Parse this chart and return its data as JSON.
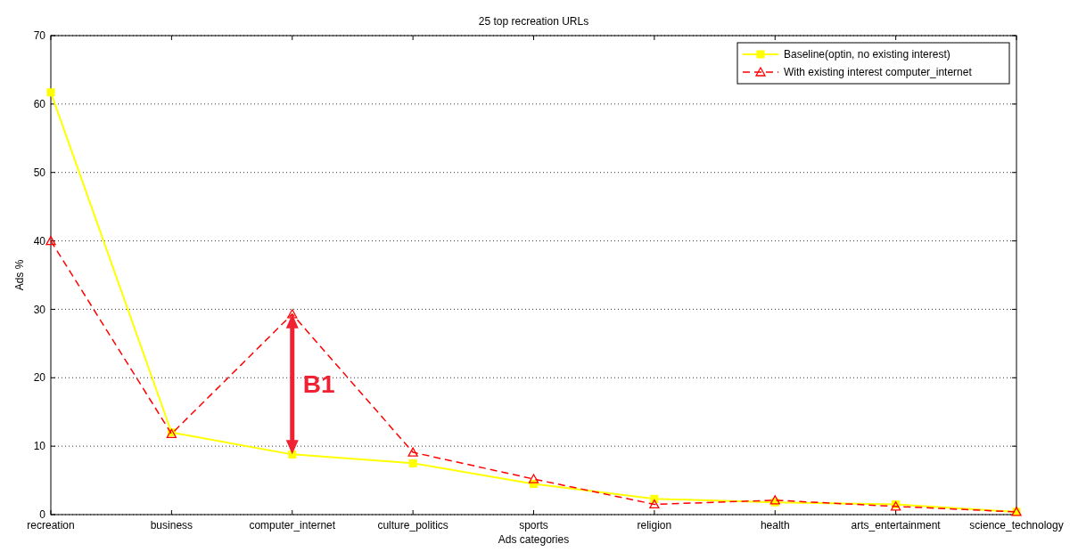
{
  "chart_data": {
    "type": "line",
    "title": "25 top recreation URLs",
    "xlabel": "Ads categories",
    "ylabel": "Ads %",
    "categories": [
      "recreation",
      "business",
      "computer_internet",
      "culture_politics",
      "sports",
      "religion",
      "health",
      "arts_entertainment",
      "science_technology"
    ],
    "series": [
      {
        "name": "Baseline(optin, no existing interest)",
        "color": "#ffff00",
        "marker": "square",
        "line_style": "solid",
        "values": [
          61.7,
          12.0,
          8.8,
          7.5,
          4.5,
          2.3,
          1.8,
          1.5,
          0.4
        ]
      },
      {
        "name": "With existing interest computer_internet",
        "color": "#ff0000",
        "marker": "triangle",
        "line_style": "dashed",
        "values": [
          40.0,
          11.8,
          29.3,
          9.1,
          5.2,
          1.5,
          2.1,
          1.2,
          0.4
        ]
      }
    ],
    "ylim": [
      0,
      70
    ],
    "yticks": [
      0,
      10,
      20,
      30,
      40,
      50,
      60,
      70
    ],
    "grid": "y",
    "legend": "top right",
    "annotations": [
      "B1"
    ]
  }
}
